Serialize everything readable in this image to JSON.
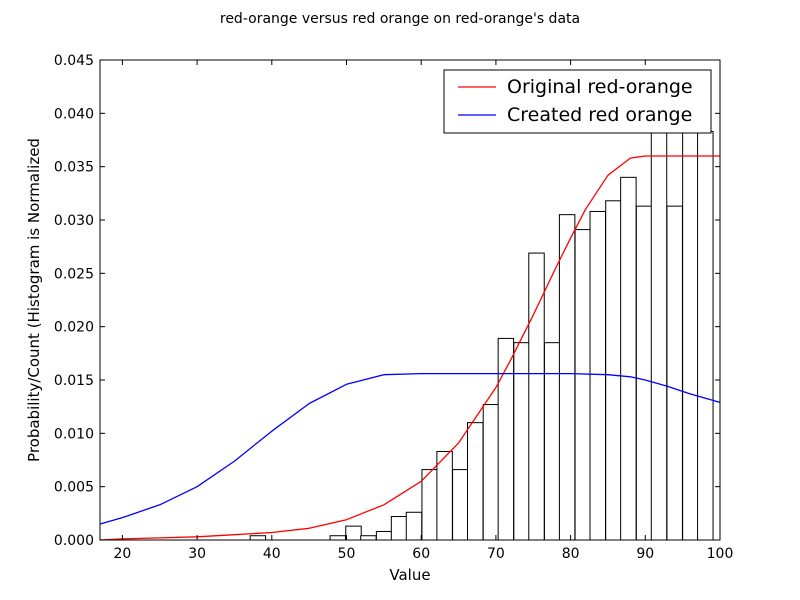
{
  "chart_data": {
    "type": "histogram+line",
    "title": "red-orange versus red orange on red-orange's data",
    "xlabel": "Value",
    "ylabel": "Probability/Count (Histogram is Normalized",
    "xlim": [
      17,
      100
    ],
    "ylim": [
      0,
      0.045
    ],
    "xticks": [
      20,
      30,
      40,
      50,
      60,
      70,
      80,
      90,
      100
    ],
    "xtick_labels": [
      "20",
      "30",
      "40",
      "50",
      "60",
      "70",
      "80",
      "90",
      "100"
    ],
    "yticks": [
      0.0,
      0.005,
      0.01,
      0.015,
      0.02,
      0.025,
      0.03,
      0.035,
      0.04,
      0.045
    ],
    "ytick_labels": [
      "0.000",
      "0.005",
      "0.010",
      "0.015",
      "0.020",
      "0.025",
      "0.030",
      "0.035",
      "0.040",
      "0.045"
    ],
    "grid": false,
    "legend_position": "top-right",
    "histogram": {
      "bin_width": 2.07,
      "bins": [
        {
          "x0": 37.1,
          "value": 0.0004
        },
        {
          "x0": 47.8,
          "value": 0.0004
        },
        {
          "x0": 49.9,
          "value": 0.0013
        },
        {
          "x0": 51.9,
          "value": 0.0004
        },
        {
          "x0": 54.0,
          "value": 0.0008
        },
        {
          "x0": 56.0,
          "value": 0.0022
        },
        {
          "x0": 58.0,
          "value": 0.0026
        },
        {
          "x0": 60.1,
          "value": 0.0066
        },
        {
          "x0": 62.1,
          "value": 0.0083
        },
        {
          "x0": 64.2,
          "value": 0.0066
        },
        {
          "x0": 66.2,
          "value": 0.011
        },
        {
          "x0": 68.3,
          "value": 0.0127
        },
        {
          "x0": 70.3,
          "value": 0.0189
        },
        {
          "x0": 72.4,
          "value": 0.0185
        },
        {
          "x0": 74.4,
          "value": 0.0269
        },
        {
          "x0": 76.5,
          "value": 0.0185
        },
        {
          "x0": 78.5,
          "value": 0.0305
        },
        {
          "x0": 80.6,
          "value": 0.0291
        },
        {
          "x0": 82.6,
          "value": 0.0308
        },
        {
          "x0": 84.7,
          "value": 0.0318
        },
        {
          "x0": 86.7,
          "value": 0.034
        },
        {
          "x0": 88.8,
          "value": 0.0313
        },
        {
          "x0": 90.8,
          "value": 0.0383
        },
        {
          "x0": 92.9,
          "value": 0.0313
        },
        {
          "x0": 95.0,
          "value": 0.0383
        },
        {
          "x0": 97.0,
          "value": 0.0383
        }
      ]
    },
    "series": [
      {
        "name": "Original red-orange",
        "color": "#ff0000",
        "x": [
          17,
          20,
          25,
          30,
          35,
          40,
          45,
          50,
          55,
          60,
          65,
          70,
          72,
          75,
          78,
          80,
          82,
          85,
          88,
          90,
          92,
          95,
          100
        ],
        "y": [
          0.0,
          0.0001,
          0.0002,
          0.0003,
          0.0005,
          0.0007,
          0.0011,
          0.0019,
          0.0033,
          0.0055,
          0.0091,
          0.0143,
          0.0169,
          0.0211,
          0.0255,
          0.0283,
          0.031,
          0.0342,
          0.0358,
          0.036,
          0.036,
          0.036,
          0.036
        ]
      },
      {
        "name": "Created red orange",
        "color": "#0000ff",
        "x": [
          17,
          20,
          25,
          30,
          35,
          40,
          45,
          50,
          55,
          60,
          70,
          80,
          85,
          88,
          90,
          93,
          96,
          100
        ],
        "y": [
          0.0015,
          0.0021,
          0.0033,
          0.005,
          0.0074,
          0.0102,
          0.0128,
          0.0146,
          0.0155,
          0.0156,
          0.0156,
          0.0156,
          0.0155,
          0.0153,
          0.015,
          0.0144,
          0.0137,
          0.0129
        ]
      }
    ]
  }
}
